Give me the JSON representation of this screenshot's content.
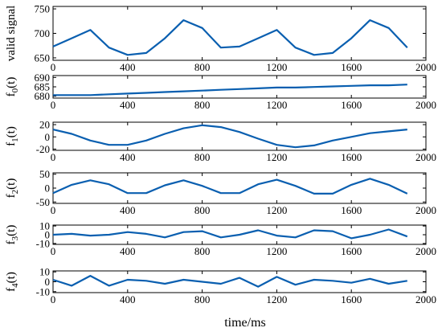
{
  "chart_data": {
    "type": "line",
    "xlabel": "time/ms",
    "line_color": "#0a5fb0",
    "xlim": [
      0,
      2000
    ],
    "xticks": [
      0,
      400,
      800,
      1200,
      1600,
      2000
    ],
    "x": [
      0,
      100,
      200,
      300,
      400,
      500,
      600,
      700,
      800,
      900,
      1000,
      1100,
      1200,
      1300,
      1400,
      1500,
      1600,
      1700,
      1800,
      1900
    ],
    "panels": [
      {
        "ylabel": "valid signal",
        "ylim": [
          645,
          755
        ],
        "yticks": [
          650,
          700,
          750
        ],
        "values": [
          673,
          690,
          707,
          671,
          656,
          660,
          690,
          727,
          711,
          671,
          673,
          690,
          707,
          671,
          656,
          660,
          690,
          727,
          711,
          671
        ]
      },
      {
        "ylabel_base": "f",
        "ylabel_sub": "0",
        "ylabel_tail": "(t)",
        "ylim": [
          679,
          691
        ],
        "yticks": [
          680,
          685,
          690
        ],
        "values": [
          680.6,
          680.6,
          680.6,
          681.0,
          681.4,
          681.8,
          682.2,
          682.6,
          683.0,
          683.4,
          683.8,
          684.2,
          684.6,
          684.6,
          684.9,
          685.2,
          685.5,
          685.8,
          685.8,
          686.2
        ]
      },
      {
        "ylabel_base": "f",
        "ylabel_sub": "1",
        "ylabel_tail": "(t)",
        "ylim": [
          -22,
          24
        ],
        "yticks": [
          -20,
          0,
          20
        ],
        "values": [
          12,
          5,
          -6,
          -13,
          -13,
          -6,
          5,
          14,
          19,
          16,
          8,
          -3,
          -13,
          -17,
          -14,
          -6,
          0,
          6,
          9,
          12
        ]
      },
      {
        "ylabel_base": "f",
        "ylabel_sub": "2",
        "ylabel_tail": "(t)",
        "ylim": [
          -55,
          55
        ],
        "yticks": [
          -50,
          0,
          50
        ],
        "values": [
          -18,
          12,
          28,
          14,
          -18,
          -18,
          10,
          28,
          8,
          -18,
          -18,
          14,
          30,
          8,
          -20,
          -20,
          12,
          34,
          12,
          -20
        ]
      },
      {
        "ylabel_base": "f",
        "ylabel_sub": "3",
        "ylabel_tail": "(t)",
        "ylim": [
          -11,
          11
        ],
        "yticks": [
          -10,
          0,
          10
        ],
        "values": [
          0,
          1,
          -1,
          0,
          3,
          1,
          -3,
          3,
          4,
          -3,
          0,
          5,
          -1,
          -3,
          5,
          4,
          -4,
          0,
          6,
          -2
        ]
      },
      {
        "ylabel_base": "f",
        "ylabel_sub": "4",
        "ylabel_tail": "(t)",
        "ylim": [
          -11,
          11
        ],
        "yticks": [
          -10,
          0,
          10
        ],
        "values": [
          2,
          -4,
          6,
          -4,
          2,
          1,
          -2,
          2,
          0,
          -2,
          4,
          -5,
          5,
          -3,
          2,
          1,
          -1,
          3,
          -2,
          1
        ]
      }
    ]
  }
}
